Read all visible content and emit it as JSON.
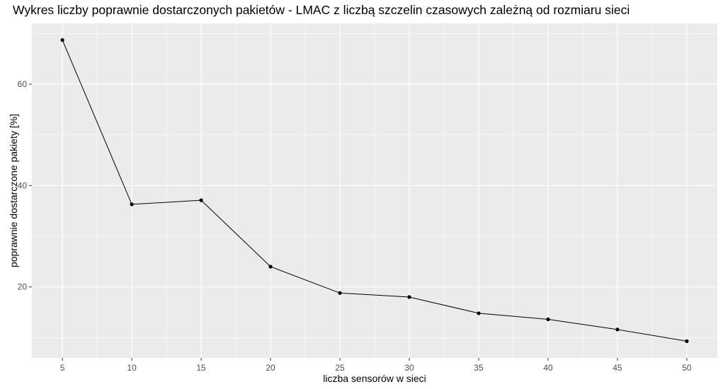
{
  "chart_data": {
    "type": "line",
    "title": "Wykres liczby poprawnie dostarczonych pakietów - LMAC z liczbą szczelin czasowych zależną od rozmiaru sieci",
    "xlabel": "liczba sensorów w sieci",
    "ylabel": "poprawnie dostarczone pakiety [%]",
    "x": [
      5,
      10,
      15,
      20,
      25,
      30,
      35,
      40,
      45,
      50
    ],
    "values": [
      68.7,
      36.3,
      37.1,
      24.0,
      18.8,
      18.0,
      14.8,
      13.6,
      11.6,
      9.3
    ],
    "xlim": [
      2.8,
      52.2
    ],
    "ylim": [
      6.0,
      72.0
    ],
    "x_ticks": [
      5,
      10,
      15,
      20,
      25,
      30,
      35,
      40,
      45,
      50
    ],
    "y_ticks": [
      20,
      40,
      60
    ],
    "grid": true,
    "legend": "none",
    "colors": {
      "panel": "#ebebeb",
      "grid": "#ffffff",
      "line": "#000000",
      "tick_text": "#4d4d4d"
    }
  }
}
